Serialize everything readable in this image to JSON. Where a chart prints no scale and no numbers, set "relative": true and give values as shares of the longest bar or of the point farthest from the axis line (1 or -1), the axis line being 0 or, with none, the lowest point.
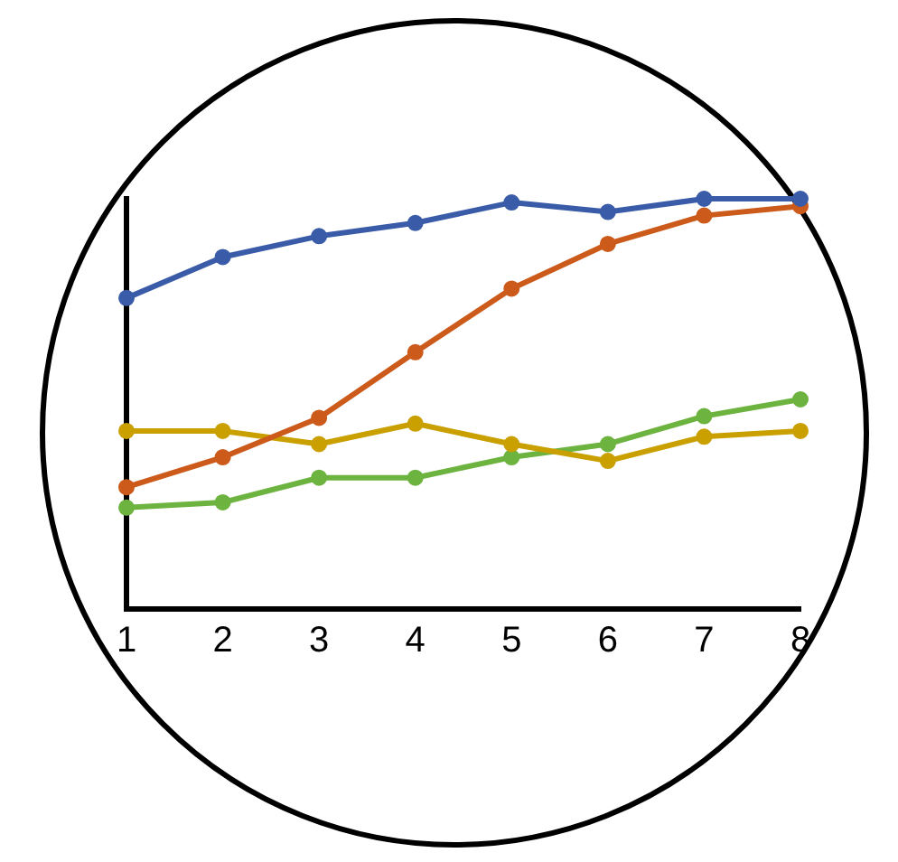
{
  "chart_data": {
    "type": "line",
    "relative": true,
    "categories": [
      "1",
      "2",
      "3",
      "4",
      "5",
      "6",
      "7",
      "8"
    ],
    "marker": "circle",
    "line_style": "solid",
    "grid": false,
    "legend": false,
    "series": [
      {
        "color": "#3a5ca8",
        "values": [
          0.758,
          0.858,
          0.909,
          0.941,
          0.991,
          0.968,
          1,
          1
        ]
      },
      {
        "color": "#cc5a1a",
        "values": [
          0.297,
          0.37,
          0.466,
          0.626,
          0.781,
          0.89,
          0.959,
          0.982
        ]
      },
      {
        "color": "#c9a000",
        "values": [
          0.434,
          0.434,
          0.402,
          0.452,
          0.402,
          0.361,
          0.42,
          0.434
        ]
      },
      {
        "color": "#6db33f",
        "values": [
          0.247,
          0.26,
          0.32,
          0.32,
          0.37,
          0.402,
          0.47,
          0.511
        ]
      }
    ]
  }
}
